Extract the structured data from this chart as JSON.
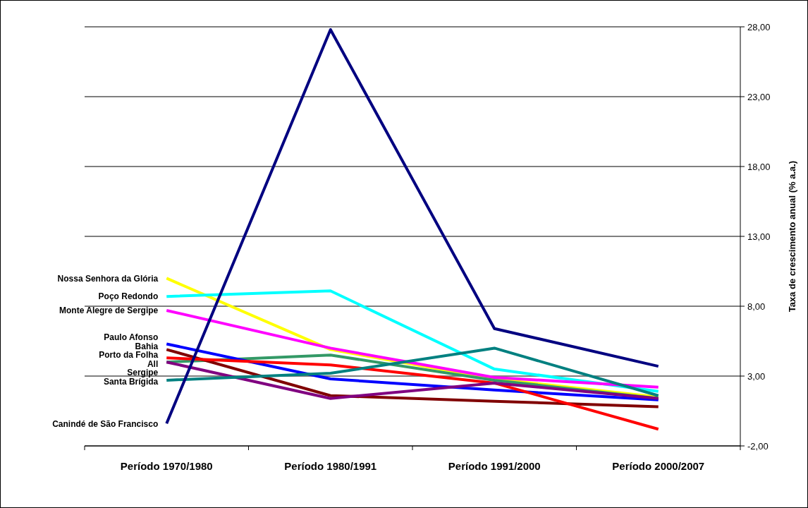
{
  "chart_data": {
    "type": "line",
    "ylabel": "Taxa de crescimento anual (% a.a.)",
    "categories": [
      "Período 1970/1980",
      "Período 1980/1991",
      "Período 1991/2000",
      "Período 2000/2007"
    ],
    "ylim": [
      -2,
      28
    ],
    "yticks": [
      {
        "value": -2,
        "label": "-2,00"
      },
      {
        "value": 3,
        "label": "3,00"
      },
      {
        "value": 8,
        "label": "8,00"
      },
      {
        "value": 13,
        "label": "13,00"
      },
      {
        "value": 18,
        "label": "18,00"
      },
      {
        "value": 23,
        "label": "23,00"
      },
      {
        "value": 28,
        "label": "28,00"
      }
    ],
    "grid": "y",
    "marker": "none",
    "line_style": "solid",
    "series": [
      {
        "name": "Nossa Senhora da Glória",
        "color": "#ffff00",
        "values": [
          10.0,
          4.9,
          2.8,
          1.5
        ]
      },
      {
        "name": "Poço Redondo",
        "color": "#00ffff",
        "values": [
          8.7,
          9.1,
          3.5,
          1.9
        ]
      },
      {
        "name": "Monte Alegre de Sergipe",
        "color": "#ff00ff",
        "values": [
          7.7,
          5.0,
          2.9,
          2.2
        ]
      },
      {
        "name": "All",
        "color": "#339966",
        "values": [
          4.0,
          4.5,
          2.7,
          1.4
        ]
      },
      {
        "name": "Paulo Afonso",
        "color": "#0000ff",
        "values": [
          5.3,
          2.8,
          2.0,
          1.3
        ]
      },
      {
        "name": "Bahia",
        "color": "#800000",
        "values": [
          4.9,
          1.6,
          1.2,
          0.8
        ]
      },
      {
        "name": "Porto da Folha",
        "color": "#ff0000",
        "values": [
          4.3,
          3.8,
          2.5,
          -0.8
        ]
      },
      {
        "name": "Sergipe",
        "color": "#800080",
        "values": [
          4.0,
          1.4,
          2.5,
          1.4
        ]
      },
      {
        "name": "Santa Brígida",
        "color": "#008080",
        "values": [
          2.7,
          3.2,
          5.0,
          1.6
        ]
      },
      {
        "name": "Canindé de São Francisco",
        "color": "#000080",
        "values": [
          -0.4,
          27.8,
          6.4,
          3.7
        ]
      }
    ]
  }
}
